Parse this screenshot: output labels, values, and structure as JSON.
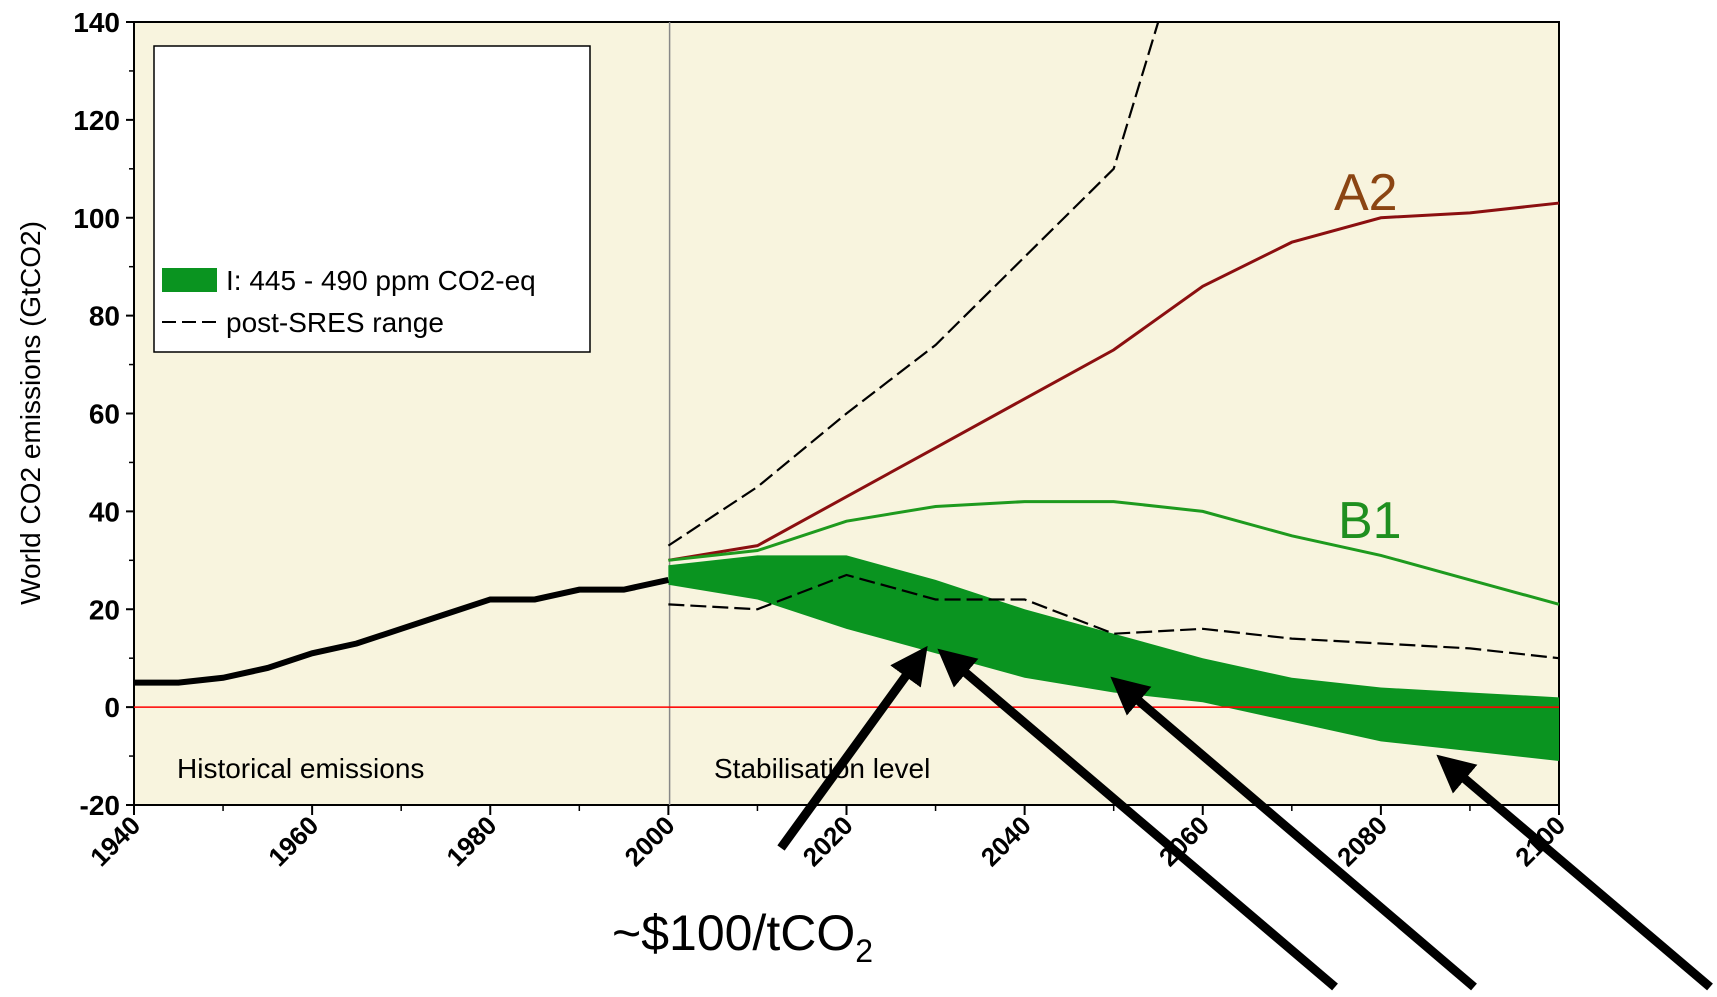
{
  "colors": {
    "plot_background": "#f8f4de",
    "stabilisation_band": "#0a9420",
    "a2_line": "#8b0f10",
    "b1_line": "#1e9a1e",
    "historical_line": "#000000",
    "zero_line": "#ff0000",
    "a2_label": "#8b4513",
    "b1_label": "#1f8f1f"
  },
  "annotations": {
    "historical": "Historical emissions",
    "stabilisation": "Stabilisation level",
    "price_main": "~$100/tCO",
    "price_sub": "2"
  },
  "chart_data": {
    "type": "line",
    "title": "",
    "ylabel": "World CO2 emissions (GtCO2)",
    "xlabel": "",
    "xlim": [
      1940,
      2100
    ],
    "ylim": [
      -20,
      140
    ],
    "xticks": [
      1940,
      1960,
      1980,
      2000,
      2020,
      2040,
      2060,
      2080,
      2100
    ],
    "yticks": [
      -20,
      0,
      20,
      40,
      60,
      80,
      100,
      120,
      140
    ],
    "grid": false,
    "legend_position": "top-left",
    "legend": [
      {
        "label": "I: 445 - 490 ppm CO2-eq",
        "style": "band"
      },
      {
        "label": "post-SRES range",
        "style": "dashed"
      }
    ],
    "series": [
      {
        "name": "A2",
        "style": "solid",
        "x": [
          2000,
          2010,
          2020,
          2030,
          2040,
          2050,
          2060,
          2070,
          2080,
          2090,
          2100
        ],
        "y": [
          30,
          33,
          43,
          53,
          63,
          73,
          86,
          95,
          100,
          101,
          103
        ]
      },
      {
        "name": "B1",
        "style": "solid",
        "x": [
          2000,
          2010,
          2020,
          2030,
          2040,
          2050,
          2060,
          2070,
          2080,
          2090,
          2100
        ],
        "y": [
          30,
          32,
          38,
          41,
          42,
          42,
          40,
          35,
          31,
          26,
          21
        ]
      },
      {
        "name": "Historical emissions",
        "style": "solid-thick",
        "x": [
          1940,
          1945,
          1950,
          1955,
          1960,
          1965,
          1970,
          1975,
          1980,
          1985,
          1990,
          1995,
          2000
        ],
        "y": [
          5,
          5,
          6,
          8,
          11,
          13,
          16,
          19,
          22,
          22,
          24,
          24,
          26
        ]
      },
      {
        "name": "post-SRES range",
        "style": "dashed",
        "x": [
          2000,
          2010,
          2020,
          2030,
          2040,
          2050,
          2055
        ],
        "y": [
          33,
          45,
          60,
          74,
          92,
          110,
          140
        ]
      },
      {
        "name": "post-SRES range",
        "style": "dashed",
        "x": [
          2000,
          2010,
          2020,
          2030,
          2040,
          2050,
          2060,
          2070,
          2080,
          2090,
          2100
        ],
        "y": [
          21,
          20,
          27,
          22,
          22,
          15,
          16,
          14,
          13,
          12,
          10
        ]
      },
      {
        "name": "I: 445 - 490 ppm CO2-eq",
        "style": "band",
        "x": [
          2000,
          2010,
          2020,
          2030,
          2040,
          2050,
          2060,
          2070,
          2080,
          2090,
          2100
        ],
        "upper": [
          29,
          31,
          31,
          26,
          20,
          15,
          10,
          6,
          4,
          3,
          2
        ],
        "lower": [
          25,
          22,
          16,
          11,
          6,
          3,
          1,
          -3,
          -7,
          -9,
          -11
        ]
      }
    ]
  }
}
